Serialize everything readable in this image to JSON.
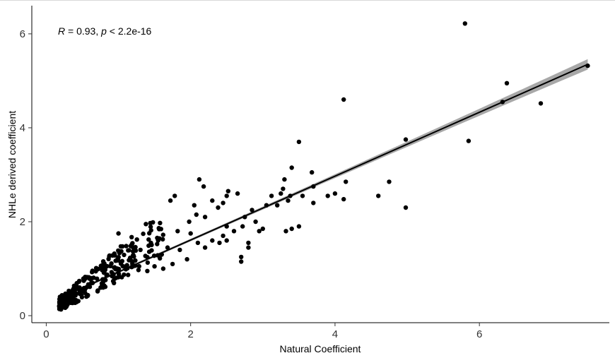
{
  "chart_data": {
    "type": "scatter",
    "xlabel": "Natural Coefficient",
    "ylabel": "NHLe derived coefficient",
    "xlim": [
      -0.2,
      7.8
    ],
    "ylim": [
      -0.15,
      6.6
    ],
    "x_ticks": [
      0,
      2,
      4,
      6
    ],
    "y_ticks": [
      0,
      2,
      4,
      6
    ],
    "grid": false,
    "annotation": {
      "r_symbol": "R",
      "r_text": " = 0.93, ",
      "p_symbol": "p",
      "p_text": " < 2.2e-16"
    },
    "fit": {
      "method": "linear",
      "x_range": [
        0.18,
        7.5
      ],
      "intercept": 0.25,
      "slope": 0.68,
      "ci_color": "#999999",
      "line_color": "#000000"
    },
    "point_color": "#000000",
    "outliers": [
      [
        5.8,
        6.22
      ],
      [
        7.5,
        5.32
      ],
      [
        6.38,
        4.95
      ],
      [
        6.32,
        4.55
      ],
      [
        6.85,
        4.52
      ],
      [
        5.85,
        3.72
      ],
      [
        4.12,
        4.6
      ],
      [
        3.5,
        3.7
      ],
      [
        4.98,
        3.75
      ],
      [
        4.98,
        2.3
      ],
      [
        4.75,
        2.85
      ],
      [
        4.6,
        2.55
      ],
      [
        4.15,
        2.85
      ],
      [
        4.12,
        2.48
      ],
      [
        4.0,
        2.6
      ],
      [
        3.9,
        2.55
      ],
      [
        3.7,
        2.75
      ],
      [
        3.68,
        3.05
      ],
      [
        3.7,
        2.4
      ],
      [
        3.55,
        2.55
      ],
      [
        3.4,
        3.15
      ],
      [
        3.38,
        2.55
      ],
      [
        3.35,
        2.45
      ],
      [
        3.3,
        2.9
      ],
      [
        3.5,
        1.9
      ],
      [
        3.4,
        1.85
      ],
      [
        3.32,
        1.8
      ],
      [
        3.28,
        2.7
      ],
      [
        3.25,
        2.6
      ],
      [
        3.2,
        2.35
      ],
      [
        3.12,
        2.55
      ],
      [
        3.0,
        1.85
      ],
      [
        2.95,
        1.8
      ],
      [
        2.8,
        1.55
      ],
      [
        2.8,
        1.45
      ],
      [
        2.7,
        1.25
      ],
      [
        2.7,
        1.15
      ],
      [
        2.72,
        1.9
      ],
      [
        2.85,
        2.25
      ],
      [
        2.65,
        2.6
      ],
      [
        2.52,
        2.65
      ],
      [
        2.5,
        2.55
      ],
      [
        2.45,
        2.4
      ],
      [
        2.38,
        2.3
      ],
      [
        2.3,
        2.45
      ],
      [
        2.18,
        2.75
      ],
      [
        2.12,
        2.9
      ],
      [
        2.05,
        2.35
      ],
      [
        2.2,
        2.1
      ],
      [
        2.08,
        2.15
      ],
      [
        1.98,
        2.0
      ],
      [
        1.78,
        2.55
      ],
      [
        1.72,
        2.45
      ],
      [
        2.5,
        1.9
      ],
      [
        2.45,
        1.7
      ],
      [
        2.5,
        1.6
      ],
      [
        2.4,
        1.55
      ],
      [
        2.3,
        1.6
      ],
      [
        2.2,
        1.45
      ],
      [
        2.1,
        1.55
      ],
      [
        2.0,
        1.75
      ],
      [
        1.95,
        1.2
      ],
      [
        1.85,
        1.4
      ],
      [
        1.75,
        1.1
      ],
      [
        1.6,
        1.3
      ],
      [
        1.55,
        1.6
      ],
      [
        1.45,
        1.55
      ],
      [
        1.38,
        1.95
      ],
      [
        1.68,
        1.45
      ],
      [
        1.82,
        1.8
      ],
      [
        2.6,
        1.8
      ],
      [
        2.75,
        2.1
      ],
      [
        2.9,
        2.0
      ],
      [
        3.05,
        2.35
      ],
      [
        1.5,
        1.05
      ],
      [
        1.4,
        0.95
      ],
      [
        1.62,
        1.0
      ],
      [
        1.0,
        1.75
      ]
    ]
  }
}
